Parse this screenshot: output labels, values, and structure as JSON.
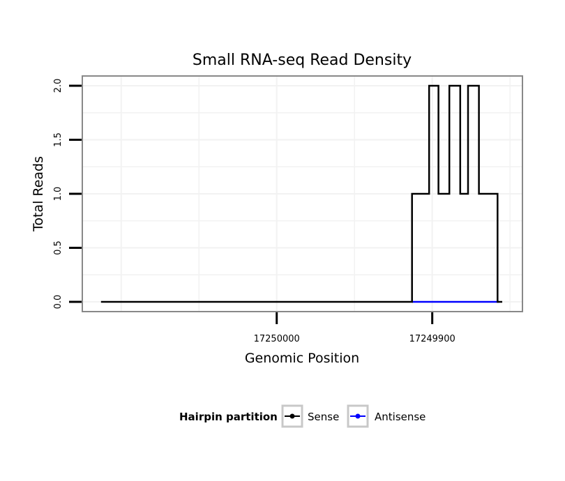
{
  "chart_data": {
    "type": "line",
    "title": "Small RNA-seq Read Density",
    "xlabel": "Genomic Position",
    "ylabel": "Total Reads",
    "x_axis_reversed": true,
    "xlim": [
      17250125,
      17249842
    ],
    "ylim": [
      -0.09,
      2.09
    ],
    "x_ticks": [
      17250000,
      17249900
    ],
    "x_tick_labels": [
      "17250000",
      "17249900"
    ],
    "y_ticks": [
      0,
      0.5,
      1,
      1.5,
      2
    ],
    "y_tick_labels": [
      "0.0",
      "0.5",
      "1.0",
      "1.5",
      "2.0"
    ],
    "grid": true,
    "legend": {
      "title": "Hairpin partition",
      "position": "bottom",
      "entries": [
        {
          "name": "Sense",
          "color": "#000000"
        },
        {
          "name": "Antisense",
          "color": "#0000ff"
        }
      ]
    },
    "series": [
      {
        "name": "Sense",
        "color": "#000000",
        "x": [
          17250113,
          17249913,
          17249913,
          17249902,
          17249902,
          17249896,
          17249896,
          17249889,
          17249889,
          17249882,
          17249882,
          17249877,
          17249877,
          17249870,
          17249870,
          17249858,
          17249858,
          17249855
        ],
        "y": [
          0,
          0,
          1,
          1,
          2,
          2,
          1,
          1,
          2,
          2,
          1,
          1,
          2,
          2,
          1,
          1,
          0,
          0
        ]
      },
      {
        "name": "Antisense",
        "color": "#0000ff",
        "x": [
          17249913,
          17249857
        ],
        "y": [
          0,
          0
        ]
      }
    ]
  }
}
